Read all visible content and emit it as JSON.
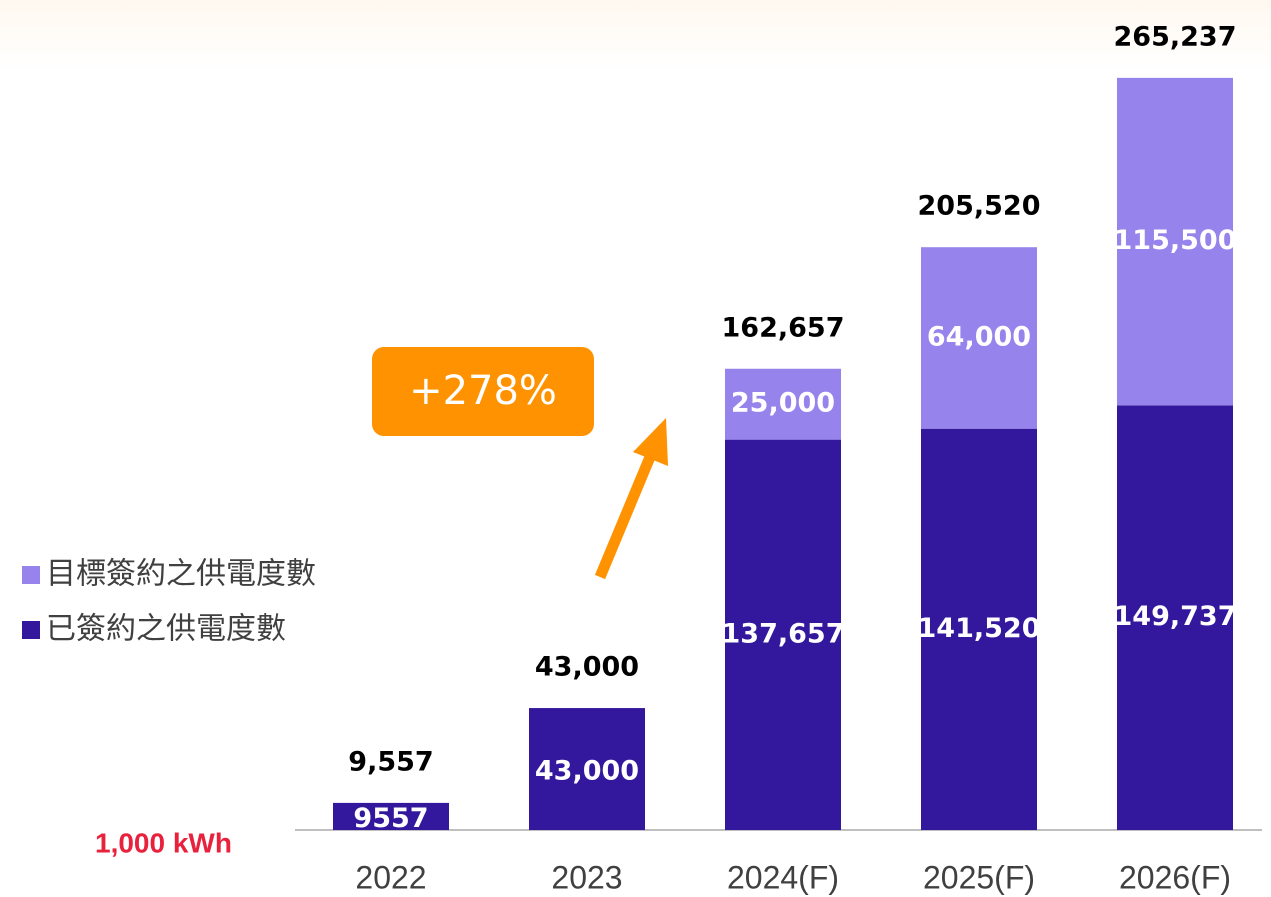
{
  "chart_data": {
    "type": "stacked_bar",
    "categories": [
      "2022",
      "2023",
      "2024(F)",
      "2025(F)",
      "2026(F)"
    ],
    "series": [
      {
        "name": "已簽約之供電度數",
        "color": "#33189e",
        "values": [
          9557,
          43000,
          137657,
          141520,
          149737
        ],
        "value_labels": [
          "9557",
          "43,000",
          "137,657",
          "141,520",
          "149,737"
        ]
      },
      {
        "name": "目標簽約之供電度數",
        "color": "#9683ec",
        "values": [
          null,
          null,
          25000,
          64000,
          115500
        ],
        "value_labels": [
          null,
          null,
          "25,000",
          "64,000",
          "115,500"
        ]
      }
    ],
    "totals": [
      9557,
      43000,
      162657,
      205520,
      265237
    ],
    "total_labels": [
      "9,557",
      "43,000",
      "162,657",
      "205,520",
      "265,237"
    ],
    "unit_label": "1,000 kWh",
    "annotation": "+278%",
    "ylim": [
      0,
      280000
    ]
  }
}
